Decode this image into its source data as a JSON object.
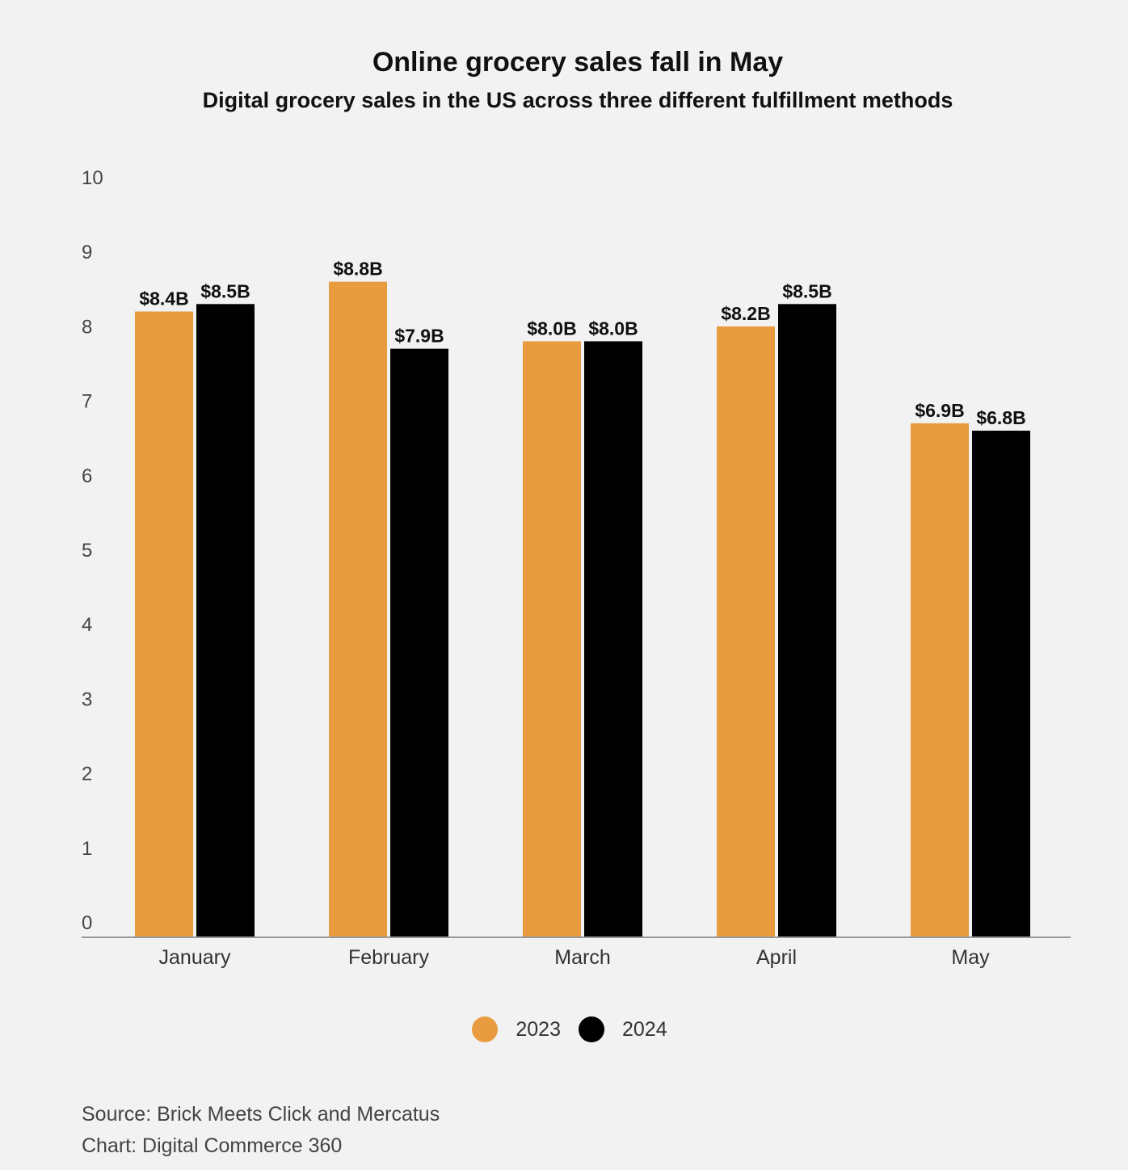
{
  "title": "Online grocery sales fall in May",
  "subtitle": "Digital grocery sales in the US across three different fulfillment methods",
  "colors": {
    "series_2023": "#e89b3f",
    "series_2024": "#000000",
    "axis": "#999999",
    "tick_text": "#444444",
    "label_text": "#111111"
  },
  "chart_data": {
    "type": "bar",
    "title": "Online grocery sales fall in May",
    "subtitle": "Digital grocery sales in the US across three different fulfillment methods",
    "categories": [
      "January",
      "February",
      "March",
      "April",
      "May"
    ],
    "series": [
      {
        "name": "2023",
        "values": [
          8.4,
          8.8,
          8.0,
          8.2,
          6.9
        ],
        "labels": [
          "$8.4B",
          "$8.8B",
          "$8.0B",
          "$8.2B",
          "$6.9B"
        ]
      },
      {
        "name": "2024",
        "values": [
          8.5,
          7.9,
          8.0,
          8.5,
          6.8
        ],
        "labels": [
          "$8.5B",
          "$7.9B",
          "$8.0B",
          "$8.5B",
          "$6.8B"
        ]
      }
    ],
    "yticks": [
      "0",
      "1",
      "2",
      "3",
      "4",
      "5",
      "6",
      "7",
      "8",
      "9",
      "10"
    ],
    "ylim": [
      0,
      10
    ],
    "xlabel": "",
    "ylabel": "",
    "grid": false,
    "legend_position": "bottom-center"
  },
  "legend": [
    {
      "label": "2023",
      "color": "#e89b3f"
    },
    {
      "label": "2024",
      "color": "#000000"
    }
  ],
  "source": {
    "line1": "Source: Brick Meets Click and Mercatus",
    "line2": "Chart: Digital Commerce 360"
  }
}
